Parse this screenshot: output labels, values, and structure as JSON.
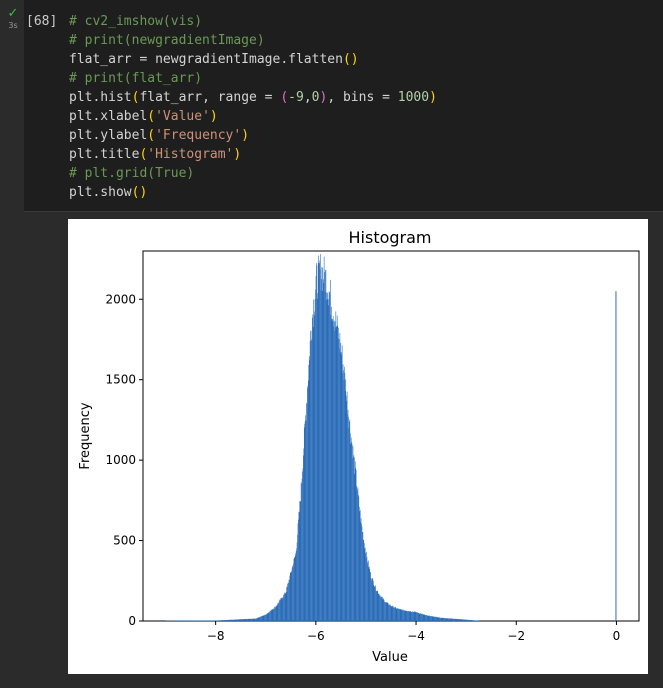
{
  "cell": {
    "execution_count": "[68]",
    "status_icon": "check-icon",
    "exec_time": "3s",
    "code_lines": [
      [
        {
          "t": "# cv2_imshow(vis)",
          "c": "comment"
        }
      ],
      [
        {
          "t": "# print(newgradientImage)",
          "c": "comment"
        }
      ],
      [
        {
          "t": "flat_arr = newgradientImage.flatten",
          "c": "plain"
        },
        {
          "t": "()",
          "c": "paren"
        }
      ],
      [
        {
          "t": "# print(flat_arr)",
          "c": "comment"
        }
      ],
      [
        {
          "t": "plt.hist",
          "c": "plain"
        },
        {
          "t": "(",
          "c": "paren"
        },
        {
          "t": "flat_arr, range = ",
          "c": "plain"
        },
        {
          "t": "(",
          "c": "paren2"
        },
        {
          "t": "-9",
          "c": "number"
        },
        {
          "t": ",",
          "c": "plain"
        },
        {
          "t": "0",
          "c": "number"
        },
        {
          "t": ")",
          "c": "paren2"
        },
        {
          "t": ", bins = ",
          "c": "plain"
        },
        {
          "t": "1000",
          "c": "number"
        },
        {
          "t": ")",
          "c": "paren"
        }
      ],
      [
        {
          "t": "plt.xlabel",
          "c": "plain"
        },
        {
          "t": "(",
          "c": "paren"
        },
        {
          "t": "'Value'",
          "c": "string"
        },
        {
          "t": ")",
          "c": "paren"
        }
      ],
      [
        {
          "t": "plt.ylabel",
          "c": "plain"
        },
        {
          "t": "(",
          "c": "paren"
        },
        {
          "t": "'Frequency'",
          "c": "string"
        },
        {
          "t": ")",
          "c": "paren"
        }
      ],
      [
        {
          "t": "plt.title",
          "c": "plain"
        },
        {
          "t": "(",
          "c": "paren"
        },
        {
          "t": "'Histogram'",
          "c": "string"
        },
        {
          "t": ")",
          "c": "paren"
        }
      ],
      [
        {
          "t": "# plt.grid(True)",
          "c": "comment"
        }
      ],
      [
        {
          "t": "plt.show",
          "c": "plain"
        },
        {
          "t": "()",
          "c": "paren"
        }
      ]
    ]
  },
  "colors": {
    "bar": "#2b6cb8",
    "background": "#2b2b2b",
    "editor": "#1e1e1e"
  },
  "chart_data": {
    "type": "bar",
    "title": "Histogram",
    "xlabel": "Value",
    "ylabel": "Frequency",
    "xlim": [
      -9.45,
      0.45
    ],
    "ylim": [
      0,
      2300
    ],
    "xticks": [
      -8,
      -6,
      -4,
      -2,
      0
    ],
    "xtick_labels": [
      "−8",
      "−6",
      "−4",
      "−2",
      "0"
    ],
    "yticks": [
      0,
      500,
      1000,
      1500,
      2000
    ],
    "ytick_labels": [
      "0",
      "500",
      "1000",
      "1500",
      "2000"
    ],
    "grid": false,
    "bins": 1000,
    "range": [
      -9,
      0
    ],
    "profile_x": [
      -8.9,
      -8.0,
      -7.2,
      -7.0,
      -6.8,
      -6.6,
      -6.4,
      -6.3,
      -6.2,
      -6.1,
      -6.0,
      -5.9,
      -5.8,
      -5.7,
      -5.6,
      -5.5,
      -5.4,
      -5.3,
      -5.2,
      -5.1,
      -5.0,
      -4.9,
      -4.8,
      -4.7,
      -4.6,
      -4.5,
      -4.4,
      -4.3,
      -4.0,
      -3.8,
      -3.5,
      -3.0,
      -2.8,
      -2.7
    ],
    "profile_y": [
      2,
      3,
      15,
      40,
      90,
      180,
      420,
      800,
      1300,
      1800,
      2100,
      2180,
      2130,
      2000,
      1850,
      1700,
      1450,
      1150,
      900,
      620,
      420,
      280,
      200,
      150,
      115,
      95,
      80,
      70,
      55,
      35,
      20,
      8,
      3,
      0
    ],
    "spike": {
      "x": 0.0,
      "y": 2050
    }
  }
}
